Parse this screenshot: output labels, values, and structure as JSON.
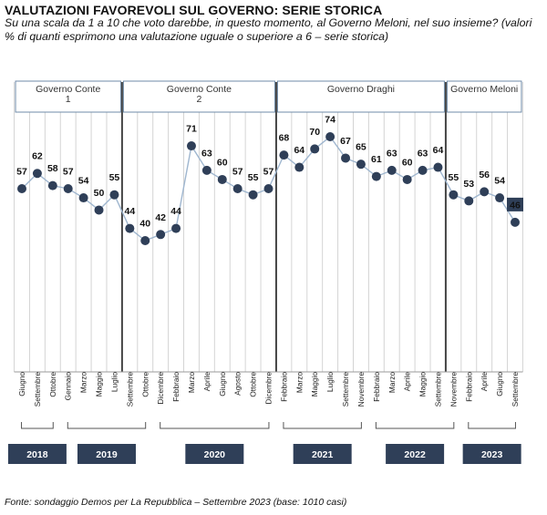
{
  "title": "VALUTAZIONI FAVOREVOLI SUL GOVERNO: SERIE STORICA",
  "subtitle": "Su una scala da 1 a 10 che voto darebbe, in questo momento, al Governo Meloni, nel suo insieme? (valori % di quanti esprimono una valutazione uguale o superiore a 6 – serie storica)",
  "source": "Fonte: sondaggio Demos per La Repubblica – Settembre 2023 (base: 1010 casi)",
  "colors": {
    "marker": "#2f3f58",
    "line": "#9fb6cf",
    "governo_box_border": "#6f8ba8",
    "year_box": "#2f3f58",
    "highlight_label_bg": "#2f3f58"
  },
  "chart_data": {
    "type": "line",
    "categories": [
      "Giugno",
      "Settembre",
      "Ottobre",
      "Gennaio",
      "Marzo",
      "Maggio",
      "Luglio",
      "Settembre",
      "Ottobre",
      "Dicembre",
      "Febbraio",
      "Marzo",
      "Aprile",
      "Giugno",
      "Agosto",
      "Ottobre",
      "Dicembre",
      "Febbraio",
      "Marzo",
      "Maggio",
      "Luglio",
      "Settembre",
      "Novembre",
      "Febbraio",
      "Marzo",
      "Aprile",
      "Maggio",
      "Settembre",
      "Novembre",
      "Febbraio",
      "Aprile",
      "Giugno",
      "Settembre"
    ],
    "values": [
      57,
      62,
      58,
      57,
      54,
      50,
      55,
      44,
      40,
      42,
      44,
      71,
      63,
      60,
      57,
      55,
      57,
      68,
      64,
      70,
      74,
      67,
      65,
      61,
      63,
      60,
      63,
      64,
      55,
      53,
      56,
      54,
      46
    ],
    "highlighted_last_label": true,
    "governi": [
      {
        "label": "Governo Conte 1",
        "first_index": 0,
        "last_index": 6
      },
      {
        "label": "Governo Conte 2",
        "first_index": 7,
        "last_index": 16
      },
      {
        "label": "Governo Draghi",
        "first_index": 17,
        "last_index": 27
      },
      {
        "label": "Governo Meloni",
        "first_index": 28,
        "last_index": 32
      }
    ],
    "years": [
      {
        "label": "2018",
        "first_index": 0,
        "last_index": 2
      },
      {
        "label": "2019",
        "first_index": 3,
        "last_index": 8
      },
      {
        "label": "2020",
        "first_index": 9,
        "last_index": 16
      },
      {
        "label": "2021",
        "first_index": 17,
        "last_index": 22
      },
      {
        "label": "2022",
        "first_index": 23,
        "last_index": 28
      },
      {
        "label": "2023",
        "first_index": 29,
        "last_index": 32
      }
    ],
    "grid": "vertical",
    "ylim": [
      35,
      78
    ]
  }
}
